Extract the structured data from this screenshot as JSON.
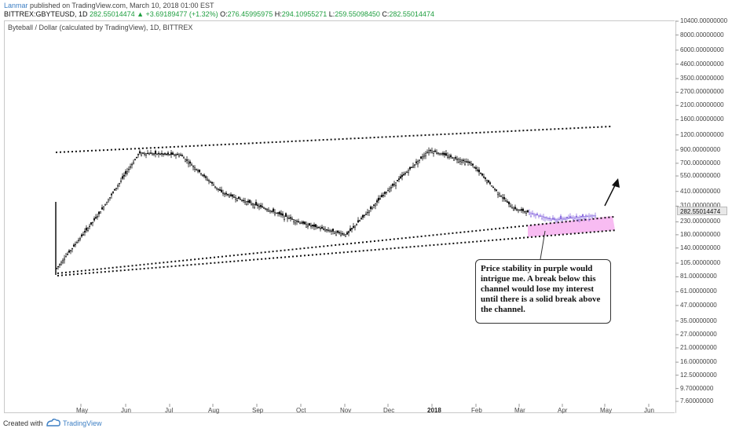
{
  "header": {
    "author": "Lanmar",
    "published_text": "published on TradingView.com, March 10, 2018 01:00 EST",
    "symbol": "BITTREX:GBYTEUSD, 1D",
    "last_price": "282.55014474",
    "change": "▲ +3.69189477 (+1.32%)",
    "open_label": "O:",
    "open": "276.45995975",
    "high_label": "H:",
    "high": "294.10955271",
    "low_label": "L:",
    "low": "259.55098450",
    "close_label": "C:",
    "close": "282.55014474"
  },
  "chart_title": "Byteball / Dollar (calculated by TradingView), 1D, BITTREX",
  "price_axis": {
    "labels": [
      "10400.00000000",
      "8000.00000000",
      "6000.00000000",
      "4600.00000000",
      "3500.00000000",
      "2700.00000000",
      "2100.00000000",
      "1600.00000000",
      "1200.00000000",
      "900.00000000",
      "700.00000000",
      "550.00000000",
      "410.00000000",
      "310.00000000",
      "230.00000000",
      "180.00000000",
      "140.00000000",
      "105.00000000",
      "81.00000000",
      "61.00000000",
      "47.00000000",
      "35.00000000",
      "27.00000000",
      "21.00000000",
      "16.00000000",
      "12.50000000",
      "9.70000000",
      "7.60000000"
    ],
    "current_price": "282.55014474"
  },
  "time_axis": {
    "months": [
      "May",
      "Jun",
      "Jul",
      "Aug",
      "Sep",
      "Oct",
      "Nov",
      "Dec",
      "2018",
      "Feb",
      "Mar",
      "Apr",
      "May",
      "Jun"
    ]
  },
  "annotation": {
    "text": "Price stability in purple would intrigue me. A break below this channel would lose my interest until there is a solid break above the channel."
  },
  "footer": {
    "created_with": "Created with",
    "brand": "TradingView"
  },
  "colors": {
    "up": "#1e9e3f",
    "link": "#3d7fc4",
    "channel_fill": "#f2a0f0",
    "recent_candles": "#8d6fe0"
  },
  "chart_data": {
    "type": "candlestick",
    "scale": "log",
    "ylim": [
      7.6,
      10400
    ],
    "x": [
      "2017-04",
      "2017-05",
      "2017-06",
      "2017-07",
      "2017-08",
      "2017-09",
      "2017-10",
      "2017-11",
      "2017-12",
      "2018-01",
      "2018-02",
      "2018-03",
      "2018-04",
      "2018-05"
    ],
    "close_approx": [
      95,
      260,
      850,
      820,
      400,
      300,
      220,
      180,
      420,
      900,
      700,
      300,
      240,
      260
    ],
    "high_approx": [
      330,
      300,
      950,
      960,
      600,
      420,
      300,
      230,
      750,
      1200,
      900,
      700,
      280,
      300
    ],
    "low_approx": [
      90,
      150,
      700,
      500,
      330,
      210,
      160,
      150,
      220,
      500,
      420,
      250,
      200,
      210
    ],
    "last": 282.55014474,
    "annotations": [
      "upper dotted trendline",
      "two lower dotted trendlines",
      "pink consolidation channel",
      "up arrow"
    ]
  }
}
